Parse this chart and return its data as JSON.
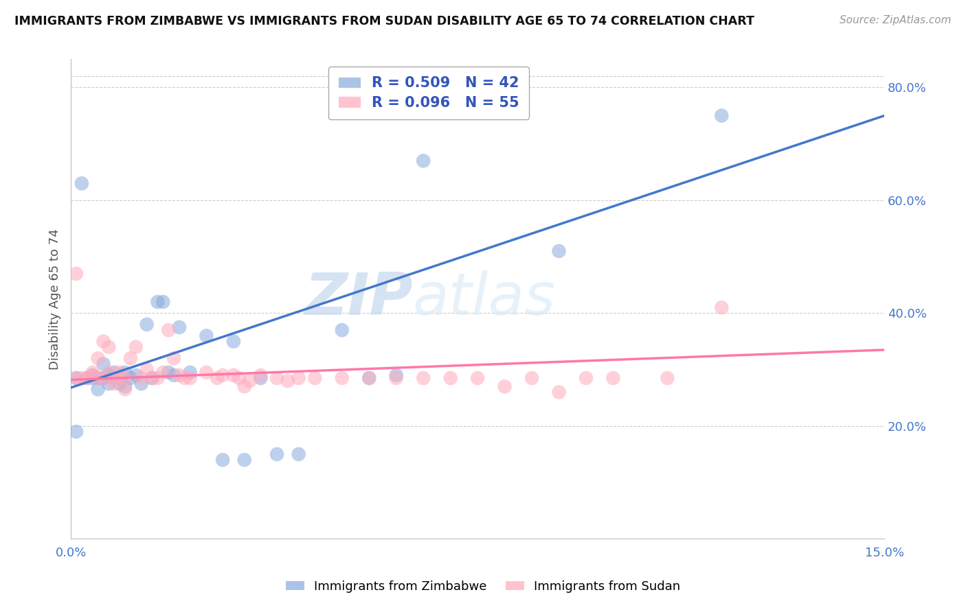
{
  "title": "IMMIGRANTS FROM ZIMBABWE VS IMMIGRANTS FROM SUDAN DISABILITY AGE 65 TO 74 CORRELATION CHART",
  "source": "Source: ZipAtlas.com",
  "ylabel": "Disability Age 65 to 74",
  "x_min": 0.0,
  "x_max": 0.15,
  "y_min": 0.0,
  "y_max": 0.85,
  "x_ticks": [
    0.0,
    0.03,
    0.06,
    0.09,
    0.12,
    0.15
  ],
  "x_tick_labels": [
    "0.0%",
    "",
    "",
    "",
    "",
    "15.0%"
  ],
  "y_tick_labels_right": [
    "20.0%",
    "40.0%",
    "60.0%",
    "80.0%"
  ],
  "y_tick_vals_right": [
    0.2,
    0.4,
    0.6,
    0.8
  ],
  "grid_color": "#cccccc",
  "background_color": "#ffffff",
  "zimbabwe_color": "#88aadd",
  "sudan_color": "#ffaabb",
  "zimbabwe_line_color": "#4477cc",
  "sudan_line_color": "#ff77aa",
  "R_zimbabwe": 0.509,
  "N_zimbabwe": 42,
  "R_sudan": 0.096,
  "N_sudan": 55,
  "watermark_zip": "ZIP",
  "watermark_atlas": "atlas",
  "legend_label_zimbabwe": "Immigrants from Zimbabwe",
  "legend_label_sudan": "Immigrants from Sudan",
  "zimbabwe_x": [
    0.001,
    0.001,
    0.002,
    0.003,
    0.004,
    0.004,
    0.005,
    0.005,
    0.006,
    0.006,
    0.007,
    0.007,
    0.008,
    0.008,
    0.009,
    0.009,
    0.01,
    0.01,
    0.011,
    0.012,
    0.013,
    0.014,
    0.015,
    0.016,
    0.017,
    0.018,
    0.019,
    0.02,
    0.022,
    0.025,
    0.028,
    0.03,
    0.032,
    0.035,
    0.038,
    0.042,
    0.05,
    0.055,
    0.06,
    0.065,
    0.09,
    0.12
  ],
  "zimbabwe_y": [
    0.285,
    0.19,
    0.63,
    0.285,
    0.29,
    0.285,
    0.265,
    0.285,
    0.31,
    0.285,
    0.275,
    0.29,
    0.295,
    0.285,
    0.275,
    0.285,
    0.295,
    0.27,
    0.285,
    0.29,
    0.275,
    0.38,
    0.285,
    0.42,
    0.42,
    0.295,
    0.29,
    0.375,
    0.295,
    0.36,
    0.14,
    0.35,
    0.14,
    0.285,
    0.15,
    0.15,
    0.37,
    0.285,
    0.29,
    0.67,
    0.51,
    0.75
  ],
  "sudan_x": [
    0.001,
    0.001,
    0.002,
    0.003,
    0.004,
    0.004,
    0.005,
    0.005,
    0.006,
    0.006,
    0.007,
    0.007,
    0.008,
    0.008,
    0.009,
    0.009,
    0.01,
    0.01,
    0.011,
    0.012,
    0.013,
    0.014,
    0.015,
    0.016,
    0.017,
    0.018,
    0.019,
    0.02,
    0.021,
    0.022,
    0.025,
    0.027,
    0.028,
    0.03,
    0.031,
    0.032,
    0.033,
    0.035,
    0.038,
    0.04,
    0.042,
    0.045,
    0.05,
    0.055,
    0.06,
    0.065,
    0.07,
    0.075,
    0.08,
    0.085,
    0.09,
    0.095,
    0.1,
    0.11,
    0.12
  ],
  "sudan_y": [
    0.285,
    0.47,
    0.285,
    0.285,
    0.29,
    0.295,
    0.285,
    0.32,
    0.35,
    0.285,
    0.34,
    0.295,
    0.275,
    0.285,
    0.285,
    0.295,
    0.265,
    0.285,
    0.32,
    0.34,
    0.285,
    0.3,
    0.285,
    0.285,
    0.295,
    0.37,
    0.32,
    0.29,
    0.285,
    0.285,
    0.295,
    0.285,
    0.29,
    0.29,
    0.285,
    0.27,
    0.28,
    0.29,
    0.285,
    0.28,
    0.285,
    0.285,
    0.285,
    0.285,
    0.285,
    0.285,
    0.285,
    0.285,
    0.27,
    0.285,
    0.26,
    0.285,
    0.285,
    0.285,
    0.41
  ],
  "zim_line_x0": 0.0,
  "zim_line_y0": 0.268,
  "zim_line_x1": 0.15,
  "zim_line_y1": 0.75,
  "sud_line_x0": 0.0,
  "sud_line_y0": 0.282,
  "sud_line_x1": 0.15,
  "sud_line_y1": 0.335
}
